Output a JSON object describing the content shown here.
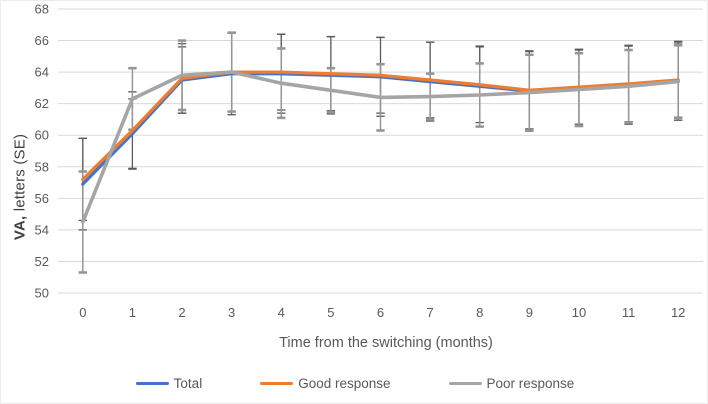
{
  "chart_data": {
    "type": "line",
    "title": "",
    "xlabel": "Time from the switching (months)",
    "ylabel_bold": "VA,",
    "ylabel_rest": " letters (SE)",
    "x_categories": [
      "0",
      "1",
      "2",
      "3",
      "4",
      "5",
      "6",
      "7",
      "8",
      "9",
      "10",
      "11",
      "12"
    ],
    "y_ticks": [
      50,
      52,
      54,
      56,
      58,
      60,
      62,
      64,
      66,
      68
    ],
    "ylim": [
      50,
      68
    ],
    "grid": "horizontal-only",
    "legend_position": "bottom",
    "error_bars": true,
    "series": [
      {
        "name": "Total",
        "color": "#4472C4",
        "error_color": "#595959",
        "values": [
          56.9,
          60.1,
          63.5,
          63.9,
          63.9,
          63.8,
          63.7,
          63.4,
          63.1,
          62.8,
          63.0,
          63.2,
          63.45
        ],
        "se": [
          2.9,
          2.2,
          2.1,
          2.6,
          2.5,
          2.45,
          2.5,
          2.5,
          2.55,
          2.55,
          2.45,
          2.5,
          2.5
        ]
      },
      {
        "name": "Good response",
        "color": "#ED7D31",
        "error_color": "#595959",
        "values": [
          57.2,
          60.3,
          63.6,
          64.0,
          64.0,
          63.9,
          63.8,
          63.5,
          63.2,
          62.85,
          63.05,
          63.25,
          63.5
        ],
        "se": [
          2.6,
          2.45,
          2.2,
          2.5,
          2.4,
          2.35,
          2.4,
          2.4,
          2.4,
          2.45,
          2.35,
          2.4,
          2.35
        ]
      },
      {
        "name": "Poor response",
        "color": "#A5A5A5",
        "error_color": "#969696",
        "values": [
          54.5,
          62.3,
          63.8,
          64.0,
          63.3,
          62.85,
          62.4,
          62.45,
          62.55,
          62.7,
          62.9,
          63.1,
          63.4
        ],
        "se": [
          3.2,
          1.95,
          2.2,
          2.5,
          2.2,
          1.4,
          2.1,
          1.45,
          2.0,
          2.4,
          2.3,
          2.3,
          2.3
        ]
      }
    ]
  },
  "colors": {
    "background": "#FFFFFF",
    "gridline": "#D9D9D9",
    "tick_text": "#595959",
    "axis_title_text": "#595959"
  }
}
